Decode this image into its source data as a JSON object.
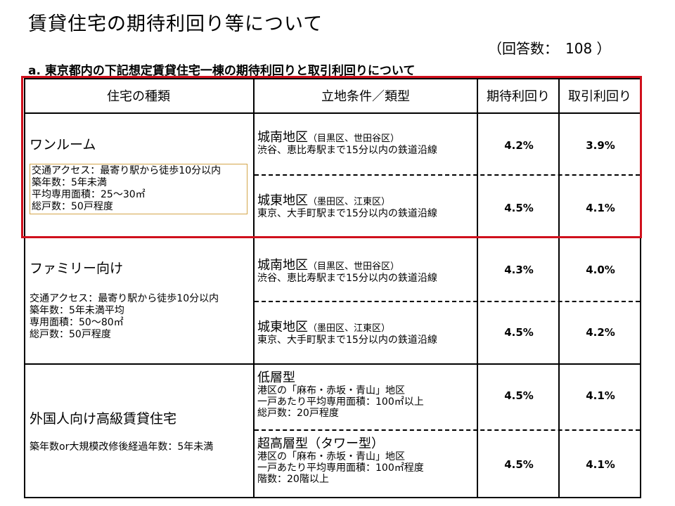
{
  "title": "賃貸住宅の期待利回り等について",
  "response_count": "（回答数：　108 ）",
  "subtitle": "a. 東京都内の下記想定賃貸住宅一棟の期待利回りと取引利回りについて",
  "headers": {
    "housing_type": "住宅の種類",
    "location": "立地条件／類型",
    "expected_yield": "期待利回り",
    "transaction_yield": "取引利回り"
  },
  "groups": [
    {
      "name": "ワンルーム",
      "notes": [
        "交通アクセス：最寄り駅から徒歩10分以内",
        "築年数：5年未満",
        "平均専用面積：25～30㎡",
        "総戸数：50戸程度"
      ],
      "rows": [
        {
          "area": "城南地区",
          "paren": "（目黒区、世田谷区）",
          "details": [
            "渋谷、恵比寿駅まで15分以内の鉄道沿線"
          ],
          "expected": "4.2%",
          "transaction": "3.9%"
        },
        {
          "area": "城東地区",
          "paren": "（墨田区、江東区）",
          "details": [
            "東京、大手町駅まで15分以内の鉄道沿線"
          ],
          "expected": "4.5%",
          "transaction": "4.1%"
        }
      ]
    },
    {
      "name": "ファミリー向け",
      "notes": [
        "交通アクセス：最寄り駅から徒歩10分以内",
        "築年数：5年未満平均",
        "専用面積：50～80㎡",
        "総戸数：50戸程度"
      ],
      "rows": [
        {
          "area": "城南地区",
          "paren": "（目黒区、世田谷区）",
          "details": [
            "渋谷、恵比寿駅まで15分以内の鉄道沿線"
          ],
          "expected": "4.3%",
          "transaction": "4.0%"
        },
        {
          "area": "城東地区",
          "paren": "（墨田区、江東区）",
          "details": [
            "東京、大手町駅まで15分以内の鉄道沿線"
          ],
          "expected": "4.5%",
          "transaction": "4.2%"
        }
      ]
    },
    {
      "name": "外国人向け高級賃貸住宅",
      "notes": [
        "築年数or大規模改修後経過年数：5年未満"
      ],
      "rows": [
        {
          "area": "低層型",
          "paren": "",
          "details": [
            "港区の「麻布・赤坂・青山」地区",
            "一戸あたり平均専用面積：100㎡以上",
            "総戸数：20戸程度"
          ],
          "expected": "4.5%",
          "transaction": "4.1%"
        },
        {
          "area": "超高層型（タワー型）",
          "paren": "",
          "details": [
            "港区の「麻布・赤坂・青山」地区",
            "一戸あたり平均専用面積：100㎡程度",
            "階数：20階以上"
          ],
          "expected": "4.5%",
          "transaction": "4.1%"
        }
      ]
    }
  ]
}
